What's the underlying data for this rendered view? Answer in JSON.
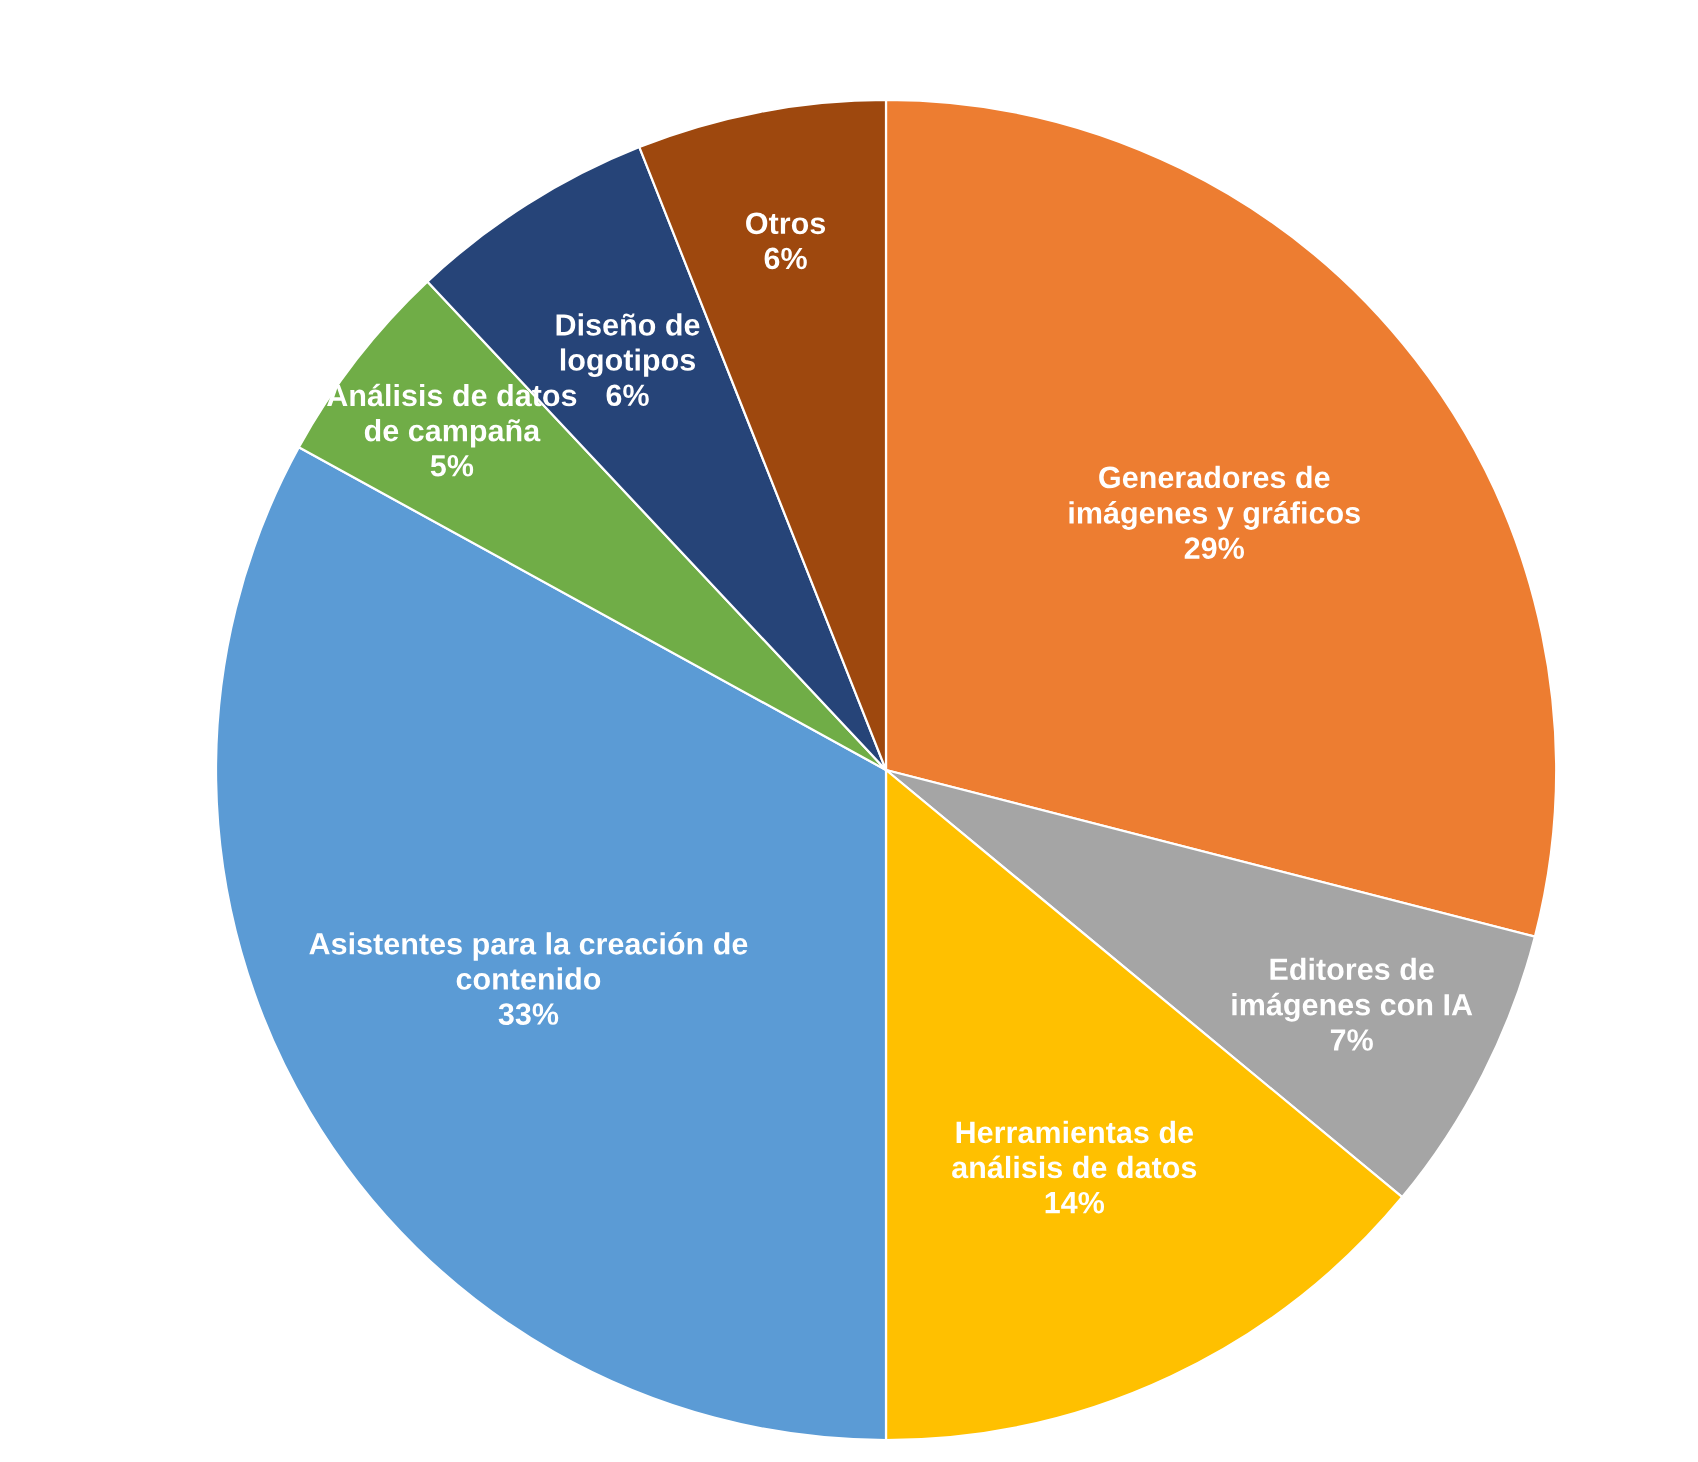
{
  "chart_data": {
    "type": "pie",
    "categories": [
      "Generadores de\nimágenes y gráficos",
      "Editores de\nimágenes con IA",
      "Herramientas de\nanálisis de datos",
      "Asistentes para la creación de\ncontenido",
      "Análisis de datos\nde campaña",
      "Diseño de\nlogotipos",
      "Otros"
    ],
    "values": [
      29,
      7,
      14,
      33,
      5,
      6,
      6
    ],
    "value_labels": [
      "29%",
      "7%",
      "14%",
      "33%",
      "5%",
      "6%",
      "6%"
    ],
    "colors": [
      "#ed7d31",
      "#a5a5a5",
      "#ffc000",
      "#5b9bd5",
      "#70ad47",
      "#264478",
      "#9e480e"
    ]
  }
}
